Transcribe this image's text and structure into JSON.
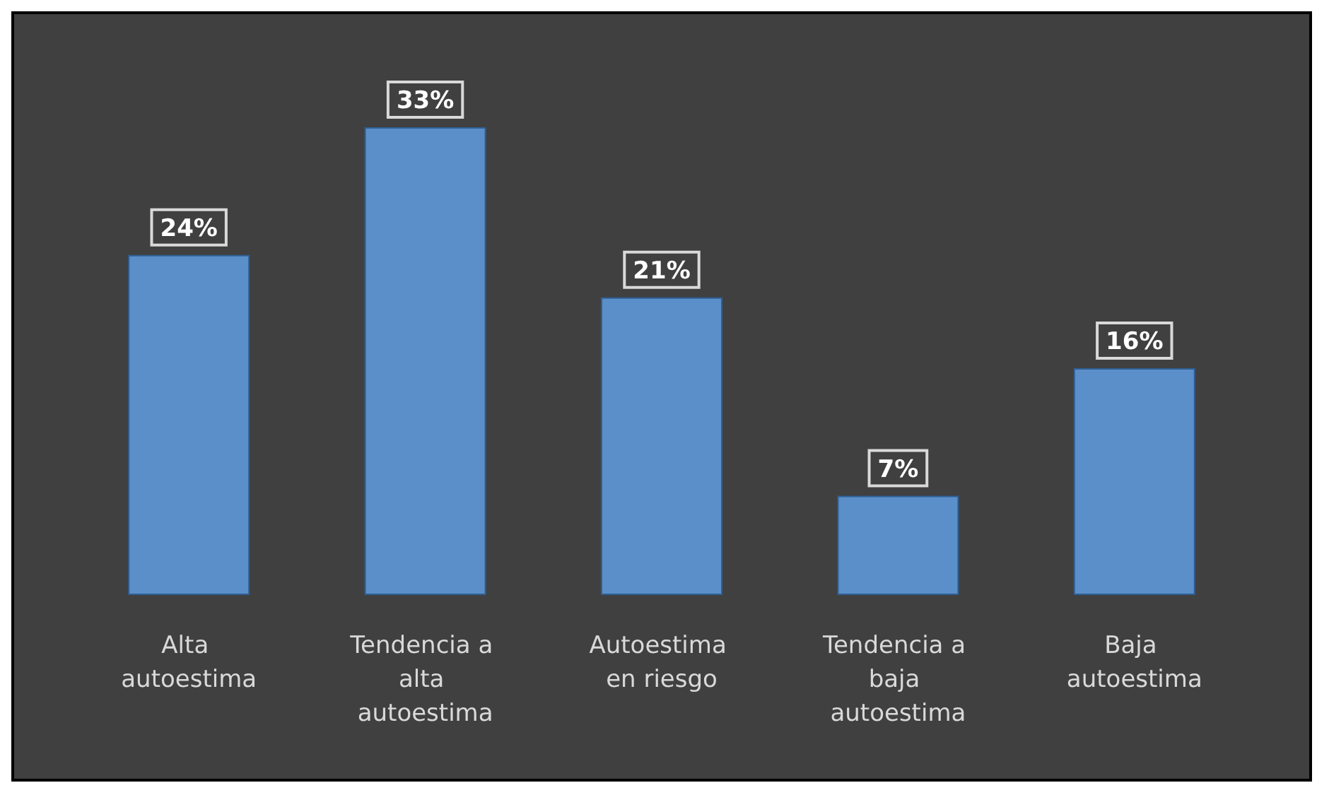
{
  "chart_data": {
    "type": "bar",
    "categories": [
      "Alta autoestima",
      "Tendencia a alta autoestima",
      "Autoestima en riesgo",
      "Tendencia a baja autoestima",
      "Baja autoestima"
    ],
    "values": [
      24,
      33,
      21,
      7,
      16
    ],
    "value_labels": [
      "24%",
      "33%",
      "21%",
      "7%",
      "16%"
    ],
    "color": "#5b8fc9"
  }
}
